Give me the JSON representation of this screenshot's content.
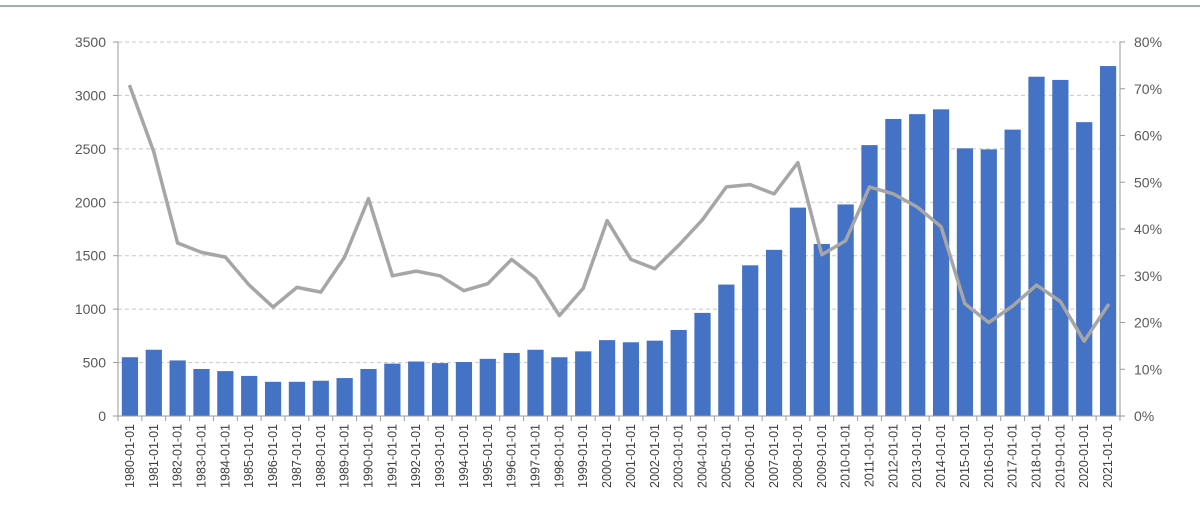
{
  "header": {
    "text": "",
    "rule_color": "#5a8a7a"
  },
  "colors": {
    "bar": "#4472c4",
    "line": "#a6a6a6",
    "grid": "#c8c8c8",
    "axis": "#9a9a9a"
  },
  "chart_data": {
    "type": "bar",
    "title": "",
    "xlabel": "",
    "ylabel": "",
    "grid": true,
    "legend": "none",
    "ylim": [
      0,
      3500
    ],
    "y_ticks": [
      "0",
      "500",
      "1000",
      "1500",
      "2000",
      "2500",
      "3000",
      "3500"
    ],
    "y2lim": [
      0,
      0.8
    ],
    "y2_ticks": [
      "0%",
      "10%",
      "20%",
      "30%",
      "40%",
      "50%",
      "60%",
      "70%",
      "80%"
    ],
    "categories": [
      "1980-01-01",
      "1981-01-01",
      "1982-01-01",
      "1983-01-01",
      "1984-01-01",
      "1985-01-01",
      "1986-01-01",
      "1987-01-01",
      "1988-01-01",
      "1989-01-01",
      "1990-01-01",
      "1991-01-01",
      "1992-01-01",
      "1993-01-01",
      "1994-01-01",
      "1995-01-01",
      "1996-01-01",
      "1997-01-01",
      "1998-01-01",
      "1999-01-01",
      "2000-01-01",
      "2001-01-01",
      "2002-01-01",
      "2003-01-01",
      "2004-01-01",
      "2005-01-01",
      "2006-01-01",
      "2007-01-01",
      "2008-01-01",
      "2009-01-01",
      "2010-01-01",
      "2011-01-01",
      "2012-01-01",
      "2013-01-01",
      "2014-01-01",
      "2015-01-01",
      "2016-01-01",
      "2017-01-01",
      "2018-01-01",
      "2019-01-01",
      "2020-01-01",
      "2021-01-01"
    ],
    "series": [
      {
        "type": "bar",
        "axis": "left",
        "values": [
          550,
          620,
          520,
          440,
          420,
          375,
          320,
          320,
          330,
          355,
          440,
          490,
          510,
          495,
          505,
          535,
          590,
          620,
          550,
          605,
          710,
          690,
          705,
          805,
          965,
          1230,
          1410,
          1555,
          1950,
          1610,
          1980,
          2535,
          2780,
          2825,
          2870,
          2505,
          2495,
          2680,
          3175,
          3145,
          2750,
          3275
        ]
      },
      {
        "type": "line",
        "axis": "right",
        "values": [
          0.705,
          0.565,
          0.37,
          0.35,
          0.34,
          0.28,
          0.233,
          0.275,
          0.265,
          0.34,
          0.465,
          0.3,
          0.31,
          0.3,
          0.268,
          0.283,
          0.335,
          0.295,
          0.215,
          0.273,
          0.418,
          0.335,
          0.315,
          0.365,
          0.42,
          0.49,
          0.495,
          0.475,
          0.542,
          0.345,
          0.375,
          0.49,
          0.475,
          0.447,
          0.405,
          0.24,
          0.2,
          0.235,
          0.28,
          0.245,
          0.16,
          0.237
        ]
      }
    ]
  }
}
